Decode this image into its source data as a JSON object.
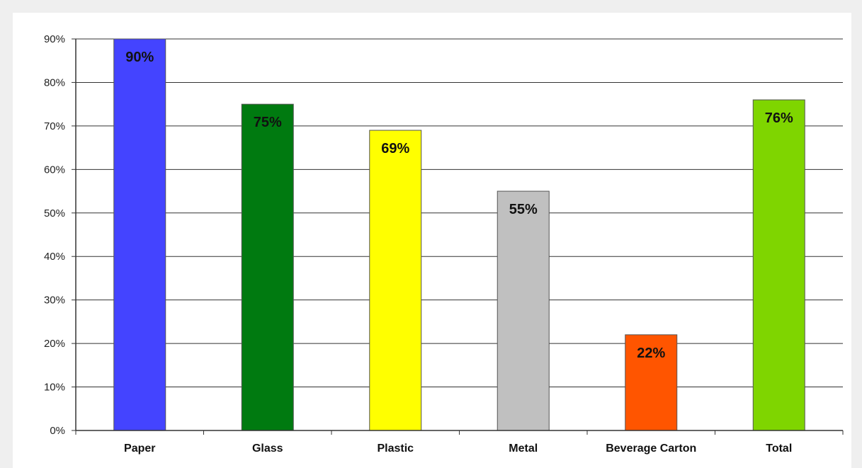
{
  "chart_data": {
    "type": "bar",
    "categories": [
      "Paper",
      "Glass",
      "Plastic",
      "Metal",
      "Beverage Carton",
      "Total"
    ],
    "values": [
      90,
      75,
      69,
      55,
      22,
      76
    ],
    "data_labels": [
      "90%",
      "75%",
      "69%",
      "55%",
      "22%",
      "76%"
    ],
    "bar_colors": [
      "#4444ff",
      "#007a10",
      "#ffff00",
      "#c0c0c0",
      "#ff5500",
      "#7fd500"
    ],
    "ylim": [
      0,
      90
    ],
    "yticks": [
      0,
      10,
      20,
      30,
      40,
      50,
      60,
      70,
      80,
      90
    ],
    "ytick_labels": [
      "0%",
      "10%",
      "20%",
      "30%",
      "40%",
      "50%",
      "60%",
      "70%",
      "80%",
      "90%"
    ],
    "grid": true,
    "legend": false,
    "title": "",
    "xlabel": "",
    "ylabel": ""
  }
}
